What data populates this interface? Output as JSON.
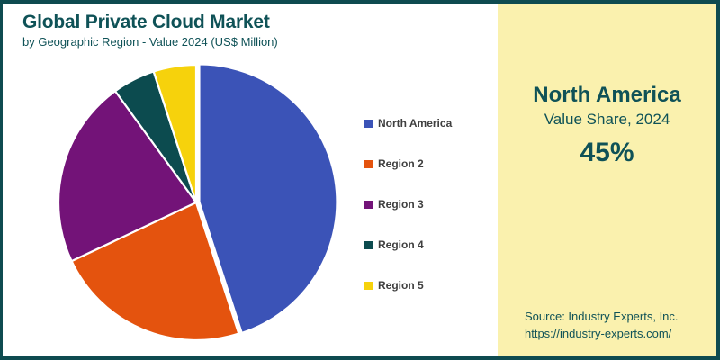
{
  "header": {
    "title": "Global Private Cloud Market",
    "subtitle": "by Geographic Region - Value 2024 (US$ Million)"
  },
  "chart_data": {
    "type": "pie",
    "title": "Global Private Cloud Market by Geographic Region - Value 2024 (US$ Million)",
    "categories": [
      "North America",
      "Region 2",
      "Region 3",
      "Region 4",
      "Region 5"
    ],
    "values": [
      45,
      23,
      22,
      5,
      5
    ],
    "unit": "percent share",
    "colors": [
      "#3B53B7",
      "#E4530E",
      "#731378",
      "#0C4B4F",
      "#F6D20C"
    ],
    "start_angle_deg": 0,
    "direction": "clockwise",
    "legend_position": "right",
    "exploded_slice": "North America",
    "slice_border_color": "#FFFFFF"
  },
  "highlight_panel": {
    "region": "North America",
    "caption": "Value Share, 2024",
    "value": "45%",
    "background": "#FAF1AE"
  },
  "source": {
    "line1": "Source: Industry Experts, Inc.",
    "line2": "https://industry-experts.com/"
  },
  "colors": {
    "frame": "#0E4B50",
    "teal_text": "#0F5257",
    "legend_text": "#3F3F3F"
  }
}
